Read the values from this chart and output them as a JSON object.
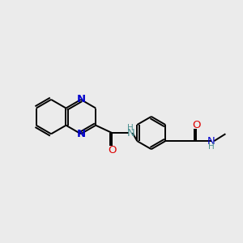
{
  "background_color": "#ebebeb",
  "bond_color": "#000000",
  "n_color": "#0000cc",
  "o_color": "#dd0000",
  "nh_color": "#4a9090",
  "figsize": [
    3.0,
    3.0
  ],
  "dpi": 100,
  "xlim": [
    0,
    10
  ],
  "ylim": [
    0,
    10
  ]
}
